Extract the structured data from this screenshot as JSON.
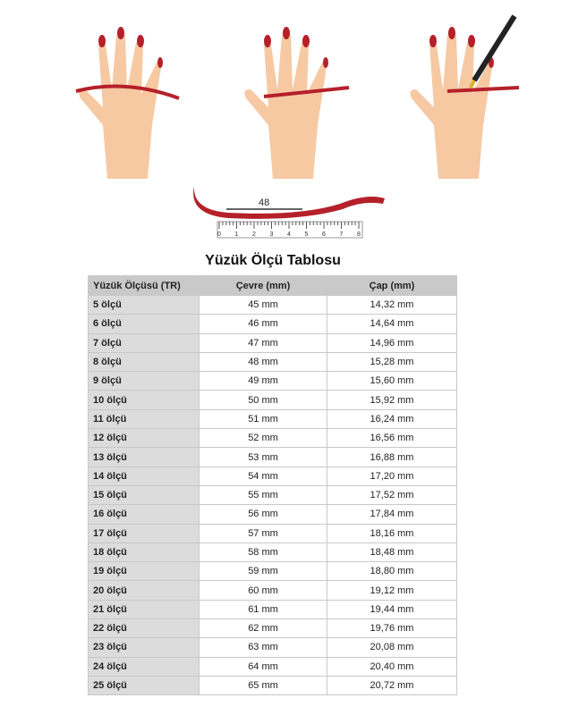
{
  "illustration": {
    "measure_label": "48",
    "ruler_ticks": [
      "0",
      "1",
      "2",
      "3",
      "4",
      "5",
      "6",
      "7",
      "8"
    ]
  },
  "title": "Yüzük Ölçü Tablosu",
  "table": {
    "headers": [
      "Yüzük Ölçüsü (TR)",
      "Çevre (mm)",
      "Çap (mm)"
    ],
    "rows": [
      [
        "5 ölçü",
        "45 mm",
        "14,32 mm"
      ],
      [
        "6 ölçü",
        "46 mm",
        "14,64 mm"
      ],
      [
        "7 ölçü",
        "47 mm",
        "14,96 mm"
      ],
      [
        "8 ölçü",
        "48 mm",
        "15,28 mm"
      ],
      [
        "9 ölçü",
        "49 mm",
        "15,60 mm"
      ],
      [
        "10 ölçü",
        "50 mm",
        "15,92 mm"
      ],
      [
        "11 ölçü",
        "51 mm",
        "16,24 mm"
      ],
      [
        "12 ölçü",
        "52 mm",
        "16,56 mm"
      ],
      [
        "13 ölçü",
        "53 mm",
        "16,88 mm"
      ],
      [
        "14 ölçü",
        "54 mm",
        "17,20 mm"
      ],
      [
        "15 ölçü",
        "55 mm",
        "17,52 mm"
      ],
      [
        "16 ölçü",
        "56 mm",
        "17,84 mm"
      ],
      [
        "17 ölçü",
        "57 mm",
        "18,16 mm"
      ],
      [
        "18 ölçü",
        "58 mm",
        "18,48 mm"
      ],
      [
        "19 ölçü",
        "59 mm",
        "18,80 mm"
      ],
      [
        "20 ölçü",
        "60 mm",
        "19,12 mm"
      ],
      [
        "21 ölçü",
        "61 mm",
        "19,44 mm"
      ],
      [
        "22 ölçü",
        "62 mm",
        "19,76 mm"
      ],
      [
        "23 ölçü",
        "63 mm",
        "20,08 mm"
      ],
      [
        "24 ölçü",
        "64 mm",
        "20,40 mm"
      ],
      [
        "25 ölçü",
        "65 mm",
        "20,72 mm"
      ]
    ]
  }
}
